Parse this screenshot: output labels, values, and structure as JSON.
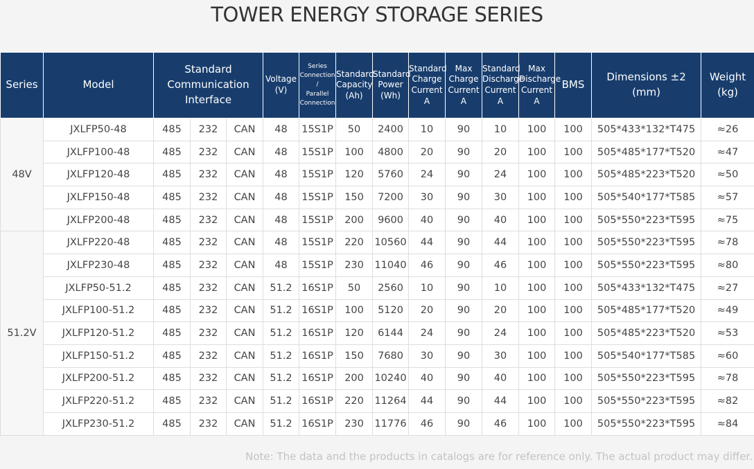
{
  "title": "TOWER ENERGY STORAGE SERIES",
  "table": {
    "headers": [
      [
        "Series"
      ],
      [
        "Model"
      ],
      [
        "Standard",
        "Communication",
        "Interface"
      ],
      [
        "Voltage",
        "(V)"
      ],
      [
        "Series",
        "Connection",
        "/",
        "Parallel",
        "Connection"
      ],
      [
        "Standard",
        "Capacity",
        "(Ah)"
      ],
      [
        "Standard",
        "Power",
        "(Wh)"
      ],
      [
        "Standard",
        "Charge",
        "Current",
        "A"
      ],
      [
        "Max",
        "Charge",
        "Current",
        "A"
      ],
      [
        "Standard",
        "Discharge",
        "Current",
        "A"
      ],
      [
        "Max",
        "Discharge",
        "Current",
        "A"
      ],
      [
        "BMS"
      ],
      [
        "Dimensions ±2",
        "(mm)"
      ],
      [
        "Weight",
        "(kg)"
      ]
    ],
    "groups": [
      {
        "label": "48V",
        "rows": [
          [
            "JXLFP50-48",
            "485",
            "232",
            "CAN",
            "48",
            "15S1P",
            "50",
            "2400",
            "10",
            "90",
            "10",
            "100",
            "100",
            "505*433*132*T475",
            "≈26"
          ],
          [
            "JXLFP100-48",
            "485",
            "232",
            "CAN",
            "48",
            "15S1P",
            "100",
            "4800",
            "20",
            "90",
            "20",
            "100",
            "100",
            "505*485*177*T520",
            "≈47"
          ],
          [
            "JXLFP120-48",
            "485",
            "232",
            "CAN",
            "48",
            "15S1P",
            "120",
            "5760",
            "24",
            "90",
            "24",
            "100",
            "100",
            "505*485*223*T520",
            "≈50"
          ],
          [
            "JXLFP150-48",
            "485",
            "232",
            "CAN",
            "48",
            "15S1P",
            "150",
            "7200",
            "30",
            "90",
            "30",
            "100",
            "100",
            "505*540*177*T585",
            "≈57"
          ],
          [
            "JXLFP200-48",
            "485",
            "232",
            "CAN",
            "48",
            "15S1P",
            "200",
            "9600",
            "40",
            "90",
            "40",
            "100",
            "100",
            "505*550*223*T595",
            "≈75"
          ]
        ]
      },
      {
        "label": "51.2V",
        "rows": [
          [
            "JXLFP220-48",
            "485",
            "232",
            "CAN",
            "48",
            "15S1P",
            "220",
            "10560",
            "44",
            "90",
            "44",
            "100",
            "100",
            "505*550*223*T595",
            "≈78"
          ],
          [
            "JXLFP230-48",
            "485",
            "232",
            "CAN",
            "48",
            "15S1P",
            "230",
            "11040",
            "46",
            "90",
            "46",
            "100",
            "100",
            "505*550*223*T595",
            "≈80"
          ],
          [
            "JXLFP50-51.2",
            "485",
            "232",
            "CAN",
            "51.2",
            "16S1P",
            "50",
            "2560",
            "10",
            "90",
            "10",
            "100",
            "100",
            "505*433*132*T475",
            "≈27"
          ],
          [
            "JXLFP100-51.2",
            "485",
            "232",
            "CAN",
            "51.2",
            "16S1P",
            "100",
            "5120",
            "20",
            "90",
            "20",
            "100",
            "100",
            "505*485*177*T520",
            "≈49"
          ],
          [
            "JXLFP120-51.2",
            "485",
            "232",
            "CAN",
            "51.2",
            "16S1P",
            "120",
            "6144",
            "24",
            "90",
            "24",
            "100",
            "100",
            "505*485*223*T520",
            "≈53"
          ],
          [
            "JXLFP150-51.2",
            "485",
            "232",
            "CAN",
            "51.2",
            "16S1P",
            "150",
            "7680",
            "30",
            "90",
            "30",
            "100",
            "100",
            "505*540*177*T585",
            "≈60"
          ],
          [
            "JXLFP200-51.2",
            "485",
            "232",
            "CAN",
            "51.2",
            "16S1P",
            "200",
            "10240",
            "40",
            "90",
            "40",
            "100",
            "100",
            "505*550*223*T595",
            "≈78"
          ],
          [
            "JXLFP220-51.2",
            "485",
            "232",
            "CAN",
            "51.2",
            "16S1P",
            "220",
            "11264",
            "44",
            "90",
            "44",
            "100",
            "100",
            "505*550*223*T595",
            "≈82"
          ],
          [
            "JXLFP230-51.2",
            "485",
            "232",
            "CAN",
            "51.2",
            "16S1P",
            "230",
            "11776",
            "46",
            "90",
            "46",
            "100",
            "100",
            "505*550*223*T595",
            "≈84"
          ]
        ]
      }
    ]
  },
  "note": "Note: The data and the products in catalogs are for reference only. The actual product may differ."
}
